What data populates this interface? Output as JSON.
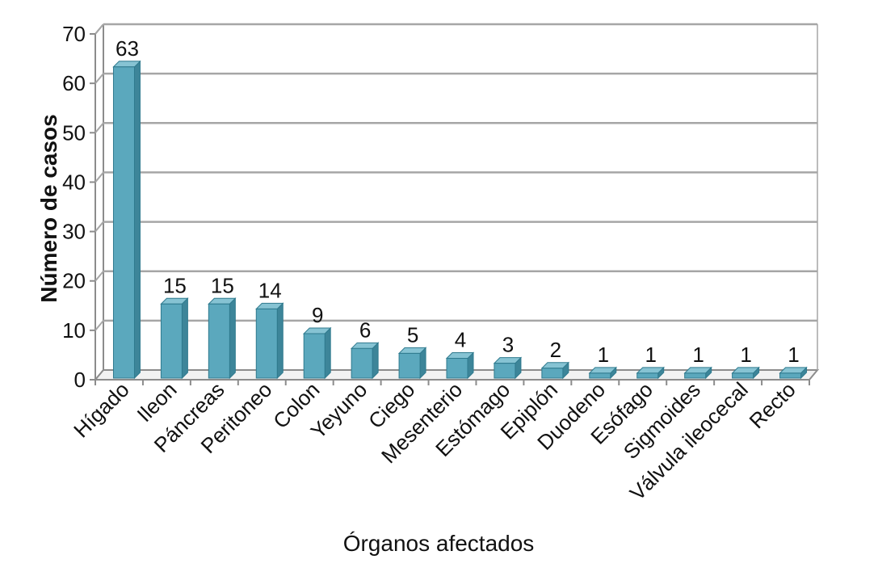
{
  "chart_data": {
    "type": "bar",
    "title": "",
    "xlabel": "Órganos afectados",
    "ylabel": "Número de casos",
    "ylim": [
      0,
      70
    ],
    "yticks": [
      0,
      10,
      20,
      30,
      40,
      50,
      60,
      70
    ],
    "grid": true,
    "legend": "none",
    "categories": [
      "Hígado",
      "Ileon",
      "Páncreas",
      "Peritoneo",
      "Colon",
      "Yeyuno",
      "Ciego",
      "Mesenterio",
      "Estómago",
      "Epiplón",
      "Duodeno",
      "Esófago",
      "Sigmoides",
      "Válvula ileocecal",
      "Recto"
    ],
    "values": [
      63,
      15,
      15,
      14,
      9,
      6,
      5,
      4,
      3,
      2,
      1,
      1,
      1,
      1,
      1
    ],
    "colors": {
      "bar_front": "#5ba8bd",
      "bar_side": "#3d8599",
      "bar_top": "#86c3d3",
      "bar_stroke": "#2f7a8e",
      "grid": "#a6a6a6",
      "axis": "#8c8c8c",
      "text": "#111111"
    }
  }
}
